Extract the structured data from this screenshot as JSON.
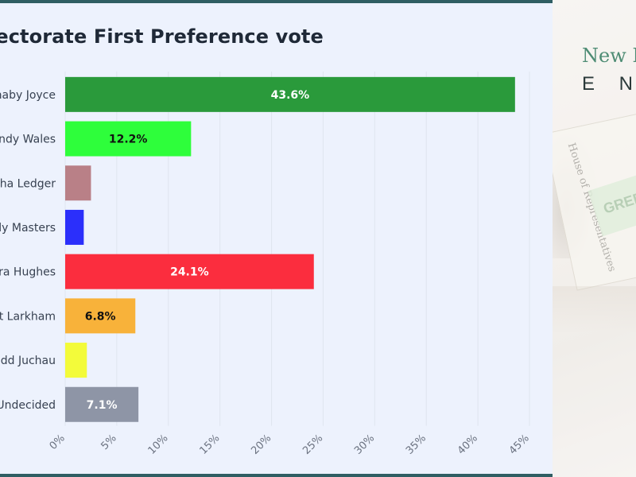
{
  "chart_data": {
    "type": "bar",
    "orientation": "horizontal",
    "title": "lectorate First Preference vote",
    "categories": [
      "naby Joyce",
      "endy Wales",
      "sha Ledger",
      "lly Masters",
      "ura Hughes",
      "t Larkham",
      "dd Juchau",
      "Undecided"
    ],
    "values": [
      43.6,
      12.2,
      2.5,
      1.8,
      24.1,
      6.8,
      2.1,
      7.1
    ],
    "data_labels": [
      "43.6%",
      "12.2%",
      "",
      "",
      "24.1%",
      "6.8%",
      "",
      "7.1%"
    ],
    "colors": [
      "#2a9a3b",
      "#2efe3b",
      "#b98087",
      "#2b2ffb",
      "#fb2d3e",
      "#f8b23a",
      "#f3fb3a",
      "#8e95a6"
    ],
    "label_colors": [
      "#ffffff",
      "#111111",
      "#111111",
      "#111111",
      "#ffffff",
      "#111111",
      "#111111",
      "#ffffff"
    ],
    "xlim": [
      0,
      45
    ],
    "x_ticks": [
      "0%",
      "5%",
      "10%",
      "15%",
      "20%",
      "25%",
      "30%",
      "35%",
      "40%",
      "45%"
    ],
    "x_tick_values": [
      0,
      5,
      10,
      15,
      20,
      25,
      30,
      35,
      40,
      45
    ],
    "grid": true,
    "legend": "none"
  },
  "side_panel": {
    "brand_top": "New E",
    "brand_bottom": "E N",
    "ballot_text": "House of Representatives",
    "tag_text": "GREE"
  },
  "colors": {
    "panel_background": "#edf2fd",
    "frame_border": "#2f5e63",
    "gridline": "#dfe5ef",
    "tick_text": "#6b7280"
  }
}
